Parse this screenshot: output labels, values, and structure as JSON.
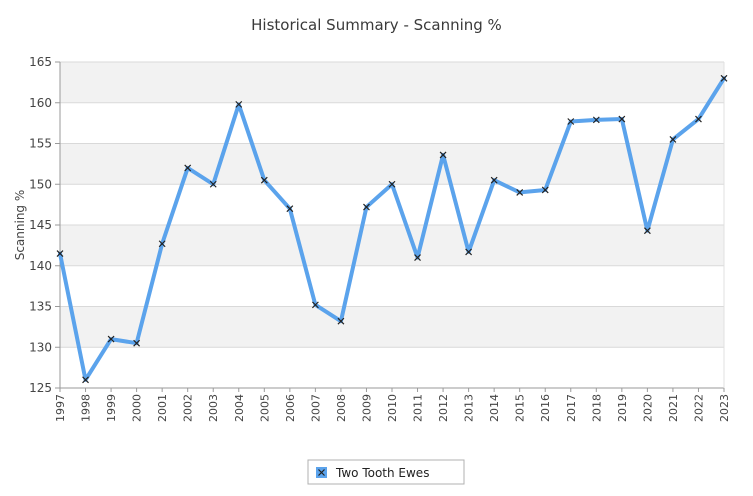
{
  "chart_data": {
    "type": "line",
    "title": "Historical Summary - Scanning %",
    "xlabel": "",
    "ylabel": "Scanning %",
    "ylim": [
      125,
      165
    ],
    "yticks": [
      125,
      130,
      135,
      140,
      145,
      150,
      155,
      160,
      165
    ],
    "grid": true,
    "legend_position": "bottom-center",
    "x": [
      "1997",
      "1998",
      "1999",
      "2000",
      "2001",
      "2002",
      "2003",
      "2004",
      "2005",
      "2006",
      "2007",
      "2008",
      "2009",
      "2010",
      "2011",
      "2012",
      "2013",
      "2014",
      "2015",
      "2016",
      "2017",
      "2018",
      "2019",
      "2020",
      "2021",
      "2022",
      "2023"
    ],
    "series": [
      {
        "name": "Two Tooth Ewes",
        "color": "#5ba3ec",
        "marker": "x",
        "values": [
          141.5,
          126,
          131,
          130.5,
          142.7,
          152,
          150,
          159.8,
          150.5,
          147,
          135.2,
          133.2,
          147.2,
          150,
          141,
          153.6,
          141.7,
          150.5,
          149,
          149.3,
          157.7,
          157.9,
          158,
          144.3,
          155.5,
          158,
          163
        ]
      }
    ]
  }
}
